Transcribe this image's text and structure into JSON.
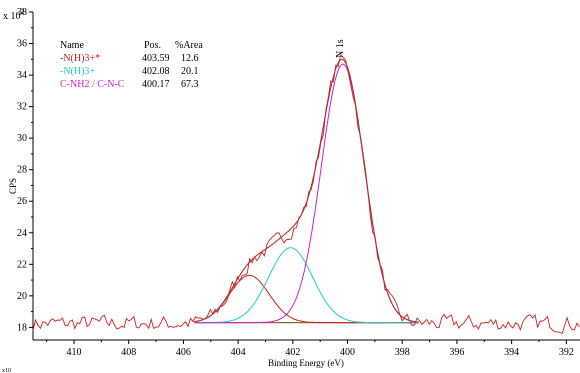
{
  "chart_data": {
    "type": "line",
    "title": "",
    "xlabel": "Binding Energy (eV)",
    "ylabel": "CPS",
    "y_multiplier_label": "x 10",
    "y_multiplier_exp": "2",
    "peak_label": "N 1s",
    "corner_mark": "x10",
    "xlim": [
      411.5,
      391.5
    ],
    "ylim": [
      17.2,
      38
    ],
    "x_ticks": [
      410,
      408,
      406,
      404,
      402,
      400,
      398,
      396,
      394,
      392
    ],
    "y_ticks": [
      18,
      20,
      22,
      24,
      26,
      28,
      30,
      32,
      34,
      36,
      38
    ],
    "baseline": 18.3,
    "legend_headers": {
      "name": "Name",
      "pos": "Pos.",
      "area": "%Area"
    },
    "components": [
      {
        "name": "-N(H)3+*",
        "pos": "403.59",
        "area": "12.6",
        "color": "#cc2222",
        "center": 403.59,
        "height": 3.0,
        "fwhm": 1.7
      },
      {
        "name": "-N(H)3+",
        "pos": "402.08",
        "area": "20.1",
        "color": "#22cccc",
        "center": 402.08,
        "height": 4.75,
        "fwhm": 1.9
      },
      {
        "name": "C-NH2 / C-N-C",
        "pos": "400.17",
        "area": "67.3",
        "color": "#cc22cc",
        "center": 400.17,
        "height": 16.4,
        "fwhm": 1.85
      }
    ],
    "envelope_color": "#aa3333",
    "raw_color": "#cc2222",
    "fit_range": [
      405.6,
      397.4
    ]
  }
}
